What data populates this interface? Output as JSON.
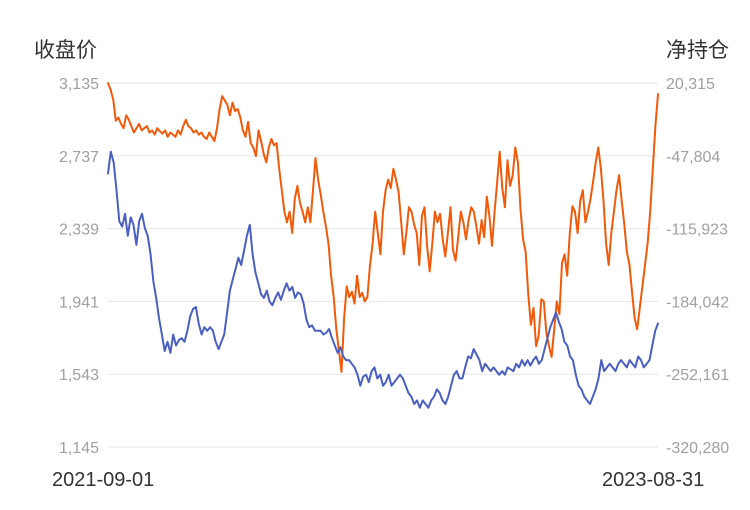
{
  "chart_data": {
    "type": "line",
    "y_left_label": "收盘价",
    "y_right_label": "净持仓",
    "x_start": "2021-09-01",
    "x_end": "2023-08-31",
    "y_left": {
      "min": 1145,
      "max": 3135,
      "ticks": [
        "3,135",
        "2,737",
        "2,339",
        "1,941",
        "1,543",
        "1,145"
      ]
    },
    "y_right": {
      "min": -320280,
      "max": 20315,
      "ticks": [
        "20,315",
        "-47,804",
        "-115,923",
        "-184,042",
        "-252,161",
        "-320,280"
      ]
    },
    "grid": true,
    "colors": {
      "close": "#4a5fc1",
      "net": "#f15a0a"
    },
    "series": [
      {
        "axis": "left",
        "values": [
          2640,
          2760,
          2700,
          2550,
          2380,
          2350,
          2420,
          2300,
          2400,
          2360,
          2250,
          2380,
          2420,
          2340,
          2300,
          2200,
          2050,
          1960,
          1850,
          1760,
          1670,
          1720,
          1660,
          1760,
          1700,
          1730,
          1740,
          1720,
          1780,
          1860,
          1900,
          1910,
          1820,
          1760,
          1800,
          1780,
          1800,
          1780,
          1720,
          1680,
          1720,
          1760,
          1880,
          2000,
          2060,
          2120,
          2180,
          2140,
          2220,
          2300,
          2360,
          2200,
          2100,
          2040,
          1980,
          1960,
          2000,
          1940,
          1920,
          1960,
          1990,
          1950,
          2000,
          2040,
          2000,
          2020,
          1960,
          1990,
          1980,
          1930,
          1840,
          1800,
          1810,
          1780,
          1780,
          1780,
          1760,
          1770,
          1790,
          1740,
          1700,
          1660,
          1690,
          1640,
          1620,
          1620,
          1600,
          1580,
          1540,
          1480,
          1530,
          1540,
          1500,
          1560,
          1580,
          1520,
          1540,
          1480,
          1500,
          1540,
          1480,
          1500,
          1520,
          1540,
          1520,
          1480,
          1440,
          1420,
          1380,
          1400,
          1360,
          1400,
          1380,
          1360,
          1400,
          1420,
          1460,
          1440,
          1400,
          1380,
          1420,
          1480,
          1540,
          1560,
          1520,
          1520,
          1580,
          1640,
          1630,
          1680,
          1650,
          1620,
          1560,
          1600,
          1580,
          1560,
          1580,
          1560,
          1540,
          1560,
          1540,
          1580,
          1570,
          1560,
          1600,
          1580,
          1620,
          1590,
          1620,
          1590,
          1620,
          1640,
          1600,
          1620,
          1680,
          1740,
          1800,
          1840,
          1880,
          1830,
          1790,
          1720,
          1700,
          1640,
          1620,
          1540,
          1480,
          1460,
          1420,
          1400,
          1380,
          1420,
          1460,
          1520,
          1620,
          1560,
          1580,
          1600,
          1580,
          1560,
          1600,
          1620,
          1600,
          1580,
          1620,
          1600,
          1580,
          1640,
          1620,
          1580,
          1600,
          1620,
          1700,
          1780,
          1820
        ],
        "series_points_note": ""
      },
      {
        "axis": "right",
        "values": [
          20315,
          14000,
          5000,
          -15000,
          -12000,
          -18000,
          -22000,
          -10000,
          -14000,
          -20000,
          -26000,
          -22000,
          -18000,
          -24000,
          -22000,
          -20000,
          -26000,
          -24000,
          -28000,
          -22000,
          -25000,
          -27000,
          -24000,
          -30000,
          -26000,
          -28000,
          -30000,
          -24000,
          -28000,
          -20000,
          -14000,
          -20000,
          -22000,
          -26000,
          -24000,
          -28000,
          -26000,
          -30000,
          -32000,
          -26000,
          -30000,
          -34000,
          -22000,
          -4000,
          8000,
          4000,
          0,
          -10000,
          2000,
          -6000,
          -4000,
          -12000,
          -24000,
          -30000,
          -16000,
          -36000,
          -40000,
          -48000,
          -24000,
          -34000,
          -46000,
          -54000,
          -40000,
          -32000,
          -38000,
          -36000,
          -60000,
          -80000,
          -100000,
          -110000,
          -100000,
          -120000,
          -88000,
          -76000,
          -92000,
          -100000,
          -110000,
          -96000,
          -110000,
          -80000,
          -50000,
          -70000,
          -84000,
          -100000,
          -114000,
          -130000,
          -160000,
          -180000,
          -210000,
          -230000,
          -250000,
          -200000,
          -170000,
          -180000,
          -175000,
          -186000,
          -160000,
          -180000,
          -176000,
          -184000,
          -180000,
          -150000,
          -130000,
          -100000,
          -120000,
          -140000,
          -100000,
          -80000,
          -70000,
          -78000,
          -60000,
          -70000,
          -82000,
          -110000,
          -140000,
          -120000,
          -96000,
          -100000,
          -112000,
          -120000,
          -150000,
          -104000,
          -96000,
          -132000,
          -156000,
          -130000,
          -100000,
          -110000,
          -102000,
          -126000,
          -142000,
          -120000,
          -96000,
          -136000,
          -146000,
          -124000,
          -100000,
          -110000,
          -126000,
          -108000,
          -96000,
          -100000,
          -114000,
          -130000,
          -108000,
          -124000,
          -86000,
          -104000,
          -132000,
          -100000,
          -72000,
          -44000,
          -78000,
          -96000,
          -52000,
          -76000,
          -66000,
          -40000,
          -54000,
          -98000,
          -126000,
          -138000,
          -178000,
          -206000,
          -190000,
          -226000,
          -216000,
          -182000,
          -184000,
          -214000,
          -226000,
          -236000,
          -210000,
          -184000,
          -196000,
          -148000,
          -140000,
          -160000,
          -120000,
          -95000,
          -100000,
          -120000,
          -90000,
          -80000,
          -110000,
          -100000,
          -88000,
          -72000,
          -54000,
          -40000,
          -60000,
          -90000,
          -130000,
          -150000,
          -120000,
          -100000,
          -80000,
          -66000,
          -90000,
          -112000,
          -138000,
          -150000,
          -176000,
          -200000,
          -210000,
          -190000,
          -170000,
          -150000,
          -130000,
          -100000,
          -60000,
          -20000,
          10000
        ]
      }
    ]
  }
}
